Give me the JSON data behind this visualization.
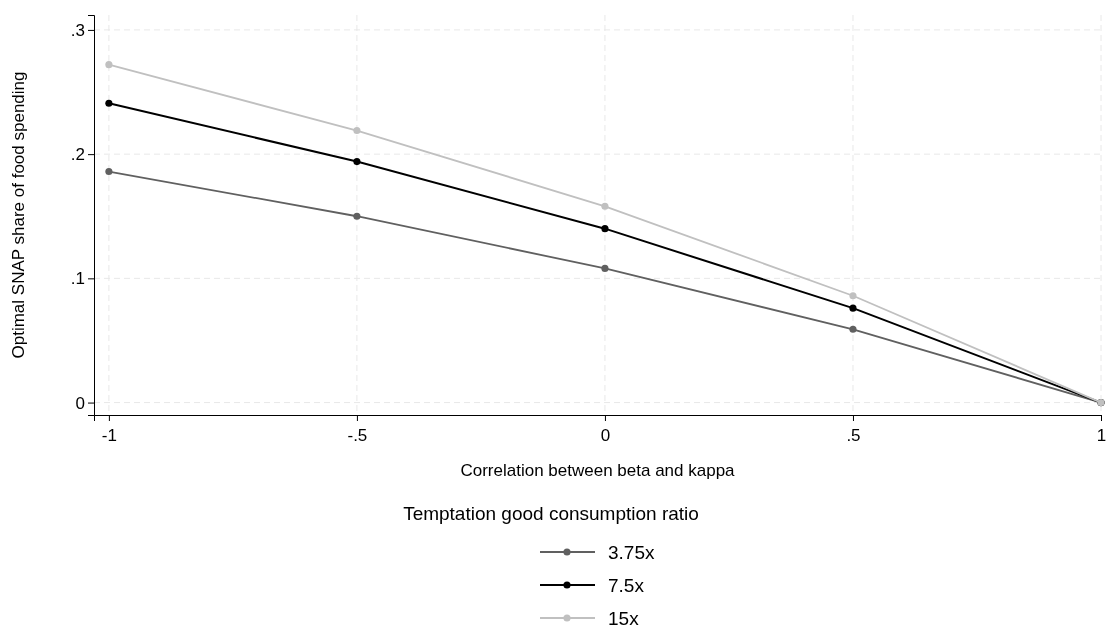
{
  "chart_data": {
    "type": "line",
    "xlabel": "Correlation between beta and kappa",
    "ylabel": "Optimal SNAP share of food spending",
    "legend_title": "Temptation good consumption ratio",
    "x": [
      -1,
      -0.5,
      0,
      0.5,
      1
    ],
    "series": [
      {
        "name": "3.75x",
        "color": "#606060",
        "values": [
          0.186,
          0.15,
          0.108,
          0.059,
          0
        ]
      },
      {
        "name": "7.5x",
        "color": "#000000",
        "values": [
          0.241,
          0.194,
          0.14,
          0.076,
          0
        ]
      },
      {
        "name": "15x",
        "color": "#c0c0c0",
        "values": [
          0.272,
          0.219,
          0.158,
          0.086,
          0
        ]
      }
    ],
    "xlim": [
      -1.03,
      1.0
    ],
    "ylim": [
      -0.01,
      0.312
    ],
    "xticks": [
      {
        "value": -1,
        "label": "-1"
      },
      {
        "value": -0.5,
        "label": "-.5"
      },
      0,
      {
        "value": 0.5,
        "label": ".5"
      },
      1
    ],
    "yticks": [
      0,
      {
        "value": 0.1,
        "label": ".1"
      },
      {
        "value": 0.2,
        "label": ".2"
      },
      {
        "value": 0.3,
        "label": ".3"
      }
    ],
    "grid": true,
    "legend": "bottom",
    "marker": "circle",
    "line_style": "solid"
  }
}
